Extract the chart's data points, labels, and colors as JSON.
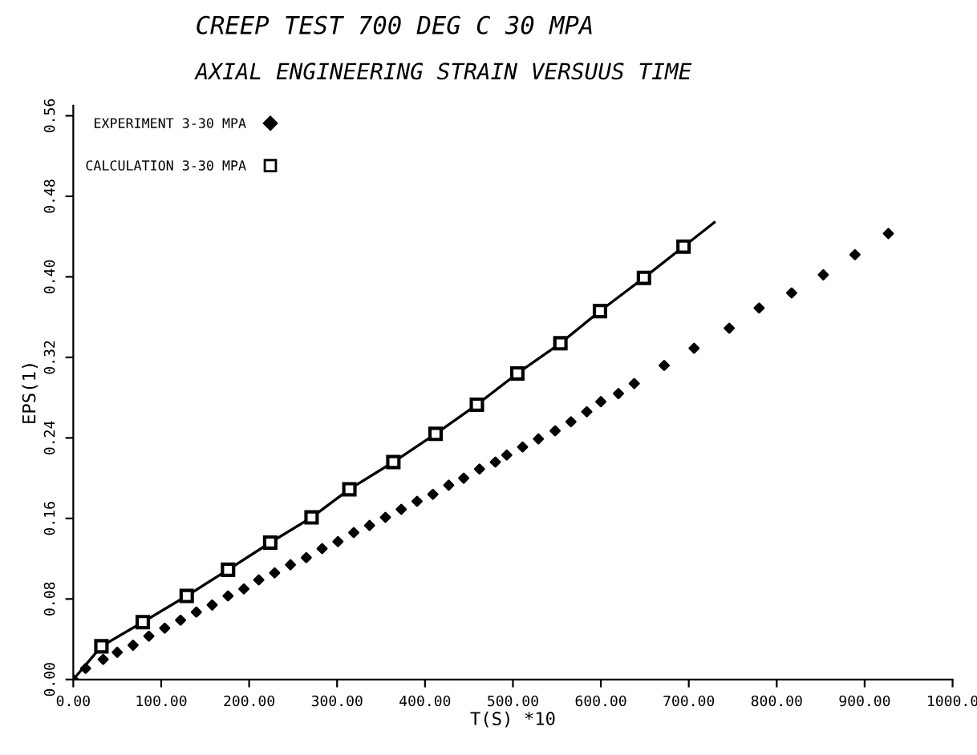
{
  "chart_data": {
    "type": "scatter",
    "title": "CREEP TEST 700 DEG C 30 MPA",
    "subtitle": "AXIAL ENGINEERING STRAIN VERSUUS TIME",
    "xlabel": "T(S) *10",
    "ylabel": "EPS(1)",
    "xlim": [
      0,
      1000
    ],
    "xticks": [
      {
        "value": 0,
        "label": "0.00"
      },
      {
        "value": 100,
        "label": "100.00"
      },
      {
        "value": 200,
        "label": "200.00"
      },
      {
        "value": 300,
        "label": "300.00"
      },
      {
        "value": 400,
        "label": "400.00"
      },
      {
        "value": 500,
        "label": "500.00"
      },
      {
        "value": 600,
        "label": "600.00"
      },
      {
        "value": 700,
        "label": "700.00"
      },
      {
        "value": 800,
        "label": "800.00"
      },
      {
        "value": 900,
        "label": "900.00"
      },
      {
        "value": 1000,
        "label": "1000.0"
      }
    ],
    "ylim": [
      0,
      0.57
    ],
    "yticks": [
      {
        "value": 0,
        "label": "0.00"
      },
      {
        "value": 0.08,
        "label": "0.08"
      },
      {
        "value": 0.16,
        "label": "0.16"
      },
      {
        "value": 0.24,
        "label": "0.24"
      },
      {
        "value": 0.32,
        "label": "0.32"
      },
      {
        "value": 0.4,
        "label": "0.40"
      },
      {
        "value": 0.48,
        "label": "0.48"
      },
      {
        "value": 0.56,
        "label": "0.56"
      }
    ],
    "grid": false,
    "legend": "top left",
    "series": [
      {
        "name": "EXPERIMENT 3-30 MPA",
        "marker": "diamond",
        "color": "#000000",
        "x": [
          0,
          14,
          34,
          50,
          68,
          86,
          104,
          122,
          140,
          158,
          176,
          194,
          211,
          229,
          247,
          265,
          283,
          301,
          319,
          337,
          355,
          373,
          391,
          409,
          427,
          444,
          462,
          480,
          493,
          511,
          529,
          548,
          566,
          584,
          600,
          620,
          638,
          672,
          706,
          746,
          780,
          817,
          853,
          889,
          927
        ],
        "values": [
          0,
          0.011,
          0.02,
          0.027,
          0.034,
          0.043,
          0.051,
          0.059,
          0.067,
          0.074,
          0.083,
          0.09,
          0.099,
          0.106,
          0.114,
          0.121,
          0.13,
          0.137,
          0.146,
          0.153,
          0.161,
          0.169,
          0.177,
          0.184,
          0.193,
          0.2,
          0.209,
          0.216,
          0.223,
          0.231,
          0.239,
          0.247,
          0.256,
          0.266,
          0.276,
          0.284,
          0.294,
          0.312,
          0.329,
          0.349,
          0.369,
          0.384,
          0.402,
          0.422,
          0.443
        ]
      },
      {
        "name": "CALCULATION 3-30 MPA",
        "type": "line",
        "marker": "square",
        "line_style": "solid",
        "color": "#000000",
        "x": [
          0,
          32,
          79,
          129,
          176,
          224,
          271,
          314,
          364,
          412,
          459,
          505,
          554,
          599,
          649,
          694,
          729
        ],
        "values": [
          0,
          0.033,
          0.057,
          0.083,
          0.109,
          0.136,
          0.161,
          0.189,
          0.216,
          0.244,
          0.273,
          0.304,
          0.334,
          0.366,
          0.399,
          0.43,
          0.454
        ]
      }
    ]
  }
}
